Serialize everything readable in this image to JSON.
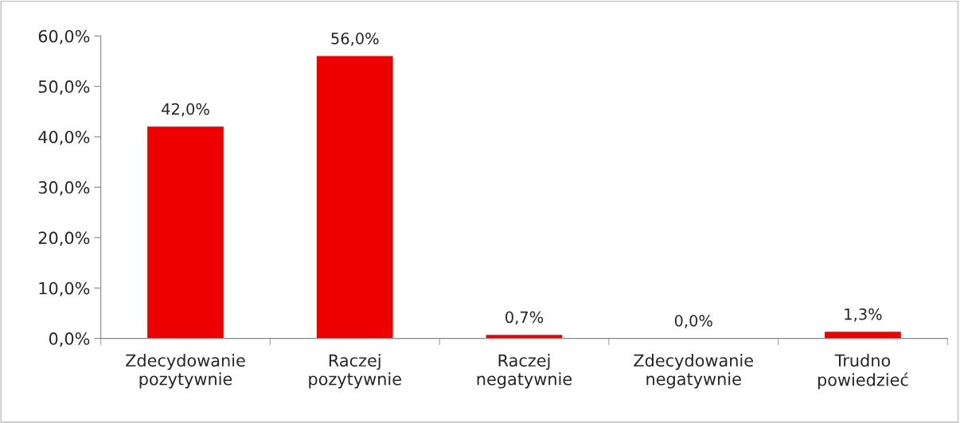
{
  "chart_data": {
    "type": "bar",
    "categories": [
      "Zdecydowanie\npozytywnie",
      "Raczej\npozytywnie",
      "Raczej\nnegatywnie",
      "Zdecydowanie\nnegatywnie",
      "Trudno\npowiedzieć"
    ],
    "values": [
      42.0,
      56.0,
      0.7,
      0.0,
      1.3
    ],
    "value_labels": [
      "42,0%",
      "56,0%",
      "0,7%",
      "0,0%",
      "1,3%"
    ],
    "color": "#ee0000",
    "ylim": [
      0,
      60
    ],
    "yticks": [
      {
        "value": 0,
        "label": "0,0%"
      },
      {
        "value": 10,
        "label": "10,0%"
      },
      {
        "value": 20,
        "label": "20,0%"
      },
      {
        "value": 30,
        "label": "30,0%"
      },
      {
        "value": 40,
        "label": "40,0%"
      },
      {
        "value": 50,
        "label": "50,0%"
      },
      {
        "value": 60,
        "label": "60,0%"
      }
    ],
    "grid": false,
    "legend": false
  }
}
